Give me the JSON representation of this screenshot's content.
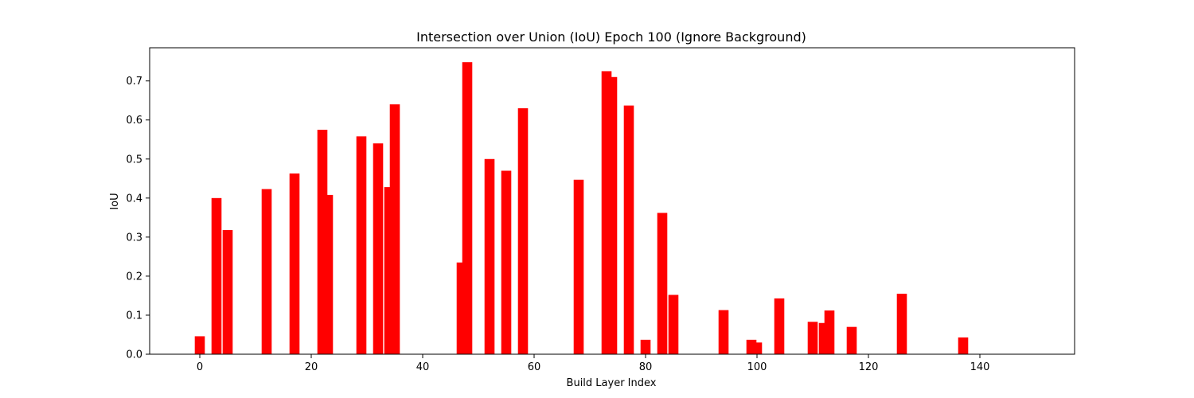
{
  "chart_data": {
    "type": "bar",
    "title": "Intersection over Union (IoU) Epoch 100 (Ignore Background)",
    "xlabel": "Build Layer Index",
    "ylabel": "IoU",
    "xlim": [
      -9,
      157
    ],
    "ylim": [
      0,
      0.785
    ],
    "xticks": [
      0,
      20,
      40,
      60,
      80,
      100,
      120,
      140
    ],
    "yticks": [
      0.0,
      0.1,
      0.2,
      0.3,
      0.4,
      0.5,
      0.6,
      0.7
    ],
    "bar_width": 1.8,
    "color": "#ff0000",
    "grid": false,
    "x": [
      0,
      3,
      5,
      12,
      17,
      22,
      23,
      29,
      32,
      34,
      35,
      47,
      48,
      52,
      55,
      58,
      68,
      73,
      74,
      77,
      80,
      83,
      85,
      94,
      99,
      100,
      104,
      110,
      112,
      113,
      117,
      126,
      137
    ],
    "values": [
      0.046,
      0.4,
      0.318,
      0.423,
      0.463,
      0.575,
      0.408,
      0.558,
      0.54,
      0.428,
      0.64,
      0.235,
      0.748,
      0.5,
      0.47,
      0.63,
      0.447,
      0.725,
      0.71,
      0.637,
      0.037,
      0.362,
      0.152,
      0.113,
      0.037,
      0.03,
      0.143,
      0.083,
      0.08,
      0.112,
      0.07,
      0.155,
      0.043
    ]
  }
}
